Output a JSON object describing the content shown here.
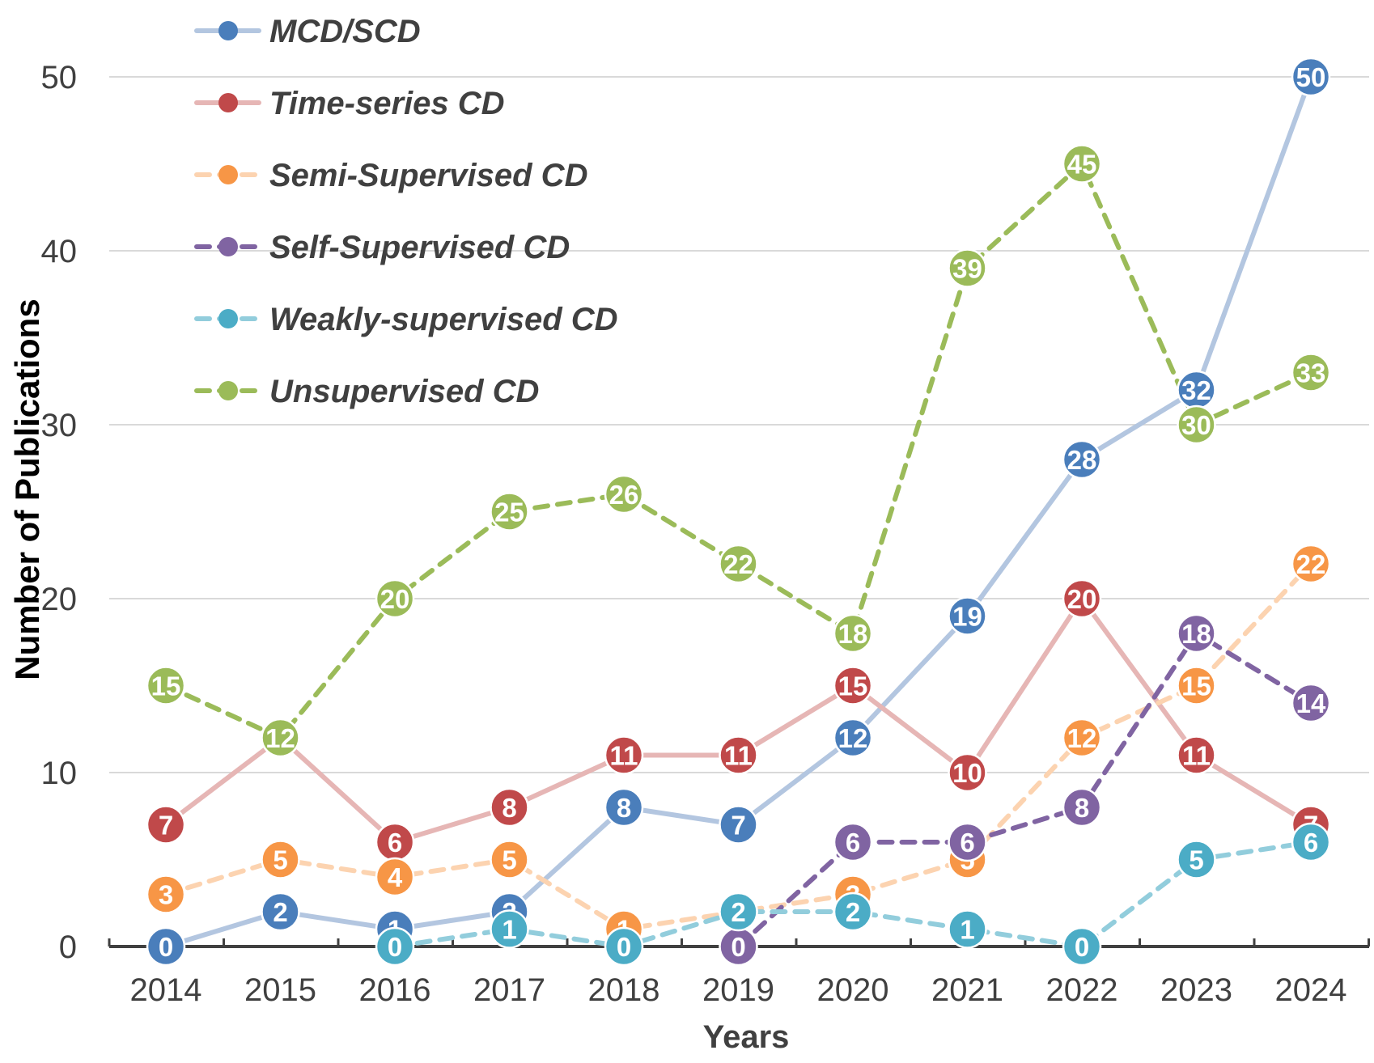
{
  "chart_data": {
    "type": "line",
    "title": "",
    "xlabel": "Years",
    "ylabel": "Number of Publications",
    "x": [
      "2014",
      "2015",
      "2016",
      "2017",
      "2018",
      "2019",
      "2020",
      "2021",
      "2022",
      "2023",
      "2024"
    ],
    "yticks": [
      "0",
      "10",
      "20",
      "30",
      "40",
      "50"
    ],
    "ylim": [
      0,
      50
    ],
    "grid": true,
    "legend": "top-left",
    "series": [
      {
        "name": "MCD/SCD",
        "line_color": "#b3c6e0",
        "marker_color": "#4a7ebb",
        "dashed": false,
        "values": [
          0,
          2,
          1,
          2,
          8,
          7,
          12,
          19,
          28,
          32,
          50
        ]
      },
      {
        "name": "Time-series CD",
        "line_color": "#e6b6b5",
        "marker_color": "#c0494a",
        "dashed": false,
        "values": [
          7,
          12,
          6,
          8,
          11,
          11,
          15,
          10,
          20,
          11,
          7
        ]
      },
      {
        "name": "Semi-Supervised CD",
        "line_color": "#fcd3b0",
        "marker_color": "#f79646",
        "dashed": true,
        "values": [
          3,
          5,
          4,
          5,
          1,
          2,
          3,
          5,
          12,
          15,
          22
        ]
      },
      {
        "name": "Self-Supervised CD",
        "line_color": "#8064a2",
        "marker_color": "#8064a2",
        "dashed": true,
        "values": [
          null,
          null,
          null,
          null,
          null,
          0,
          6,
          6,
          8,
          18,
          14
        ]
      },
      {
        "name": "Weakly-supervised CD",
        "line_color": "#92cddc",
        "marker_color": "#4bacc6",
        "dashed": true,
        "values": [
          null,
          null,
          0,
          1,
          0,
          2,
          2,
          1,
          0,
          5,
          6
        ]
      },
      {
        "name": "Unsupervised CD",
        "line_color": "#9bbb59",
        "marker_color": "#9bbb59",
        "dashed": true,
        "values": [
          15,
          12,
          20,
          25,
          26,
          22,
          18,
          39,
          45,
          30,
          33
        ]
      }
    ]
  }
}
